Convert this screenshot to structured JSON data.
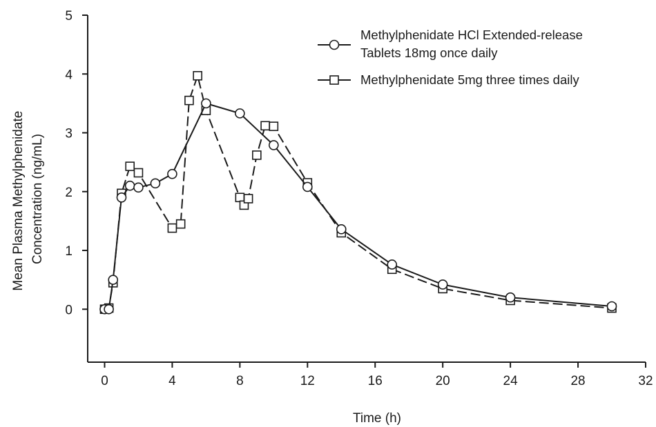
{
  "chart_data": {
    "type": "line",
    "xlabel": "Time (h)",
    "ylabel_lines": [
      "Mean Plasma Methylphenidate",
      "Concentration (ng/mL)"
    ],
    "xlim": [
      -1,
      32
    ],
    "ylim": [
      -0.9,
      5
    ],
    "x_ticks": [
      0,
      4,
      8,
      12,
      16,
      20,
      24,
      28,
      32
    ],
    "y_ticks": [
      0,
      1,
      2,
      3,
      4,
      5
    ],
    "grid": false,
    "legend_position": "top-right",
    "series": [
      {
        "name_lines": [
          "Methylphenidate HCl Extended-release",
          "Tablets 18mg once daily"
        ],
        "marker": "circle",
        "line_style": "solid",
        "color": "#1a1a1a",
        "x": [
          0,
          0.25,
          0.5,
          1,
          1.5,
          2,
          3,
          4,
          6,
          8,
          10,
          12,
          14,
          17,
          20,
          24,
          30
        ],
        "y": [
          0.0,
          0.0,
          0.5,
          1.9,
          2.1,
          2.07,
          2.14,
          2.3,
          3.5,
          3.33,
          2.79,
          2.08,
          1.36,
          0.76,
          0.42,
          0.2,
          0.05
        ]
      },
      {
        "name_lines": [
          "Methylphenidate 5mg three times daily"
        ],
        "marker": "square",
        "line_style": "dashed",
        "color": "#1a1a1a",
        "x": [
          0,
          0.25,
          0.5,
          1,
          1.5,
          2,
          4,
          4.5,
          5,
          5.5,
          6,
          8,
          8.25,
          8.5,
          9,
          9.5,
          10,
          12,
          14,
          17,
          20,
          24,
          30
        ],
        "y": [
          0.0,
          0.02,
          0.45,
          1.97,
          2.43,
          2.32,
          1.38,
          1.45,
          3.55,
          3.97,
          3.38,
          1.9,
          1.77,
          1.88,
          2.62,
          3.12,
          3.11,
          2.15,
          1.3,
          0.68,
          0.35,
          0.15,
          0.02
        ]
      }
    ]
  }
}
